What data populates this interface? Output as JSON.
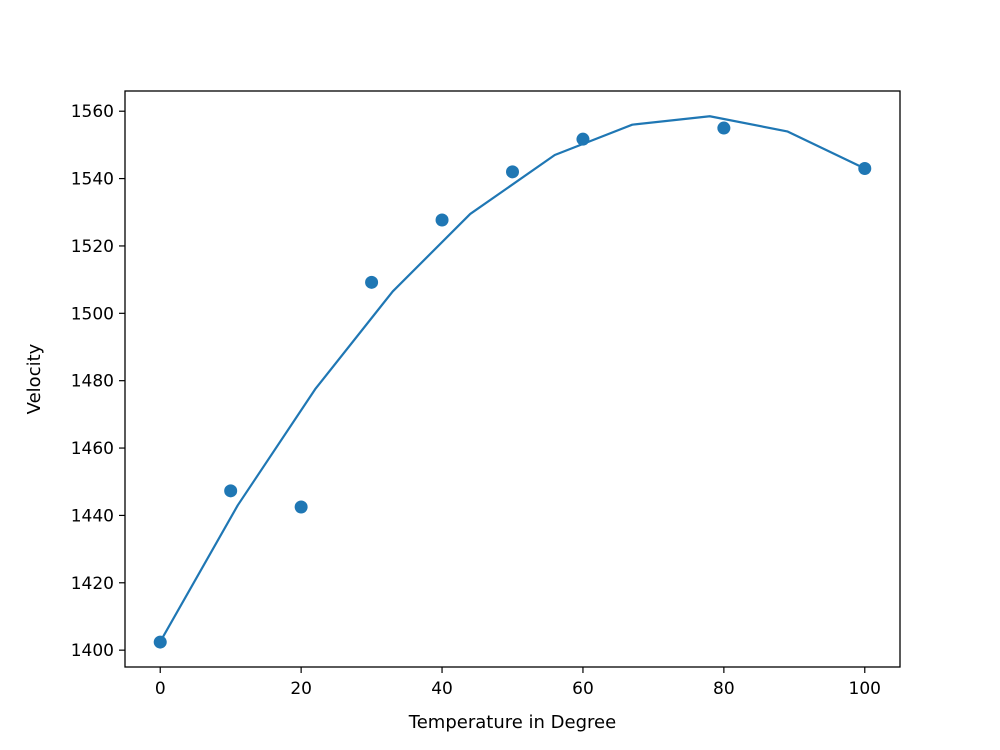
{
  "chart_data": {
    "type": "scatter",
    "title": "",
    "xlabel": "Temperature in Degree",
    "ylabel": "Velocity",
    "xlim": [
      -5,
      105
    ],
    "ylim": [
      1395,
      1566
    ],
    "xticks": [
      0,
      20,
      40,
      60,
      80,
      100
    ],
    "yticks": [
      1400,
      1420,
      1440,
      1460,
      1480,
      1500,
      1520,
      1540,
      1560
    ],
    "grid": false,
    "legend": "none",
    "colors": {
      "series": "#1f77b4",
      "axes": "#000000",
      "background": "#ffffff"
    },
    "series": [
      {
        "kind": "scatter",
        "x": [
          0,
          10,
          20,
          30,
          40,
          50,
          60,
          80,
          100
        ],
        "y": [
          1402.4,
          1447.3,
          1442.5,
          1509.2,
          1527.7,
          1542.0,
          1551.7,
          1555.0,
          1543.0
        ]
      },
      {
        "kind": "line",
        "x": [
          0,
          11,
          22,
          33,
          44,
          56,
          67,
          78,
          89,
          100
        ],
        "y": [
          1402.5,
          1443.0,
          1477.5,
          1506.5,
          1529.5,
          1547.0,
          1556.0,
          1558.5,
          1554.0,
          1543.0
        ]
      }
    ]
  }
}
